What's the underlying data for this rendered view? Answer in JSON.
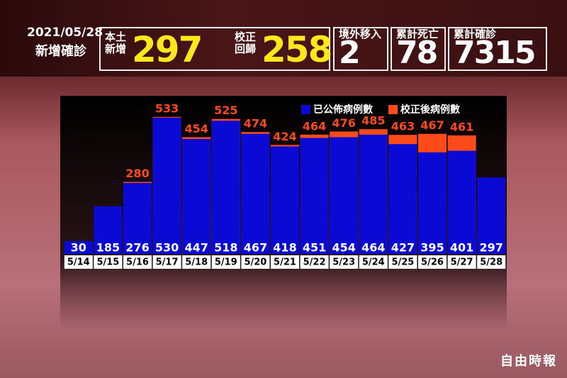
{
  "header": {
    "date": "2021/05/28",
    "title": "新增確診",
    "stats": [
      {
        "label": [
          "本土",
          "新增"
        ],
        "value": 297
      },
      {
        "label": [
          "校正",
          "回歸"
        ],
        "value": 258
      },
      {
        "label": [
          "境外移入"
        ],
        "value": 2
      },
      {
        "label": [
          "累計死亡"
        ],
        "value": 78
      },
      {
        "label": [
          "累計確診"
        ],
        "value": 7315
      }
    ]
  },
  "watermark": "自由時報",
  "chart_data": {
    "type": "bar",
    "categories": [
      "5/14",
      "5/15",
      "5/16",
      "5/17",
      "5/18",
      "5/19",
      "5/20",
      "5/21",
      "5/22",
      "5/23",
      "5/24",
      "5/25",
      "5/26",
      "5/27",
      "5/28"
    ],
    "series": [
      {
        "name": "校正後病例數",
        "color": "#ff4a1a",
        "values": [
          null,
          null,
          280,
          533,
          454,
          525,
          474,
          424,
          464,
          476,
          485,
          463,
          467,
          461,
          null
        ]
      },
      {
        "name": "已公佈病例數",
        "color": "#0a0ad4",
        "values": [
          30,
          185,
          276,
          530,
          447,
          518,
          467,
          418,
          451,
          454,
          464,
          427,
          395,
          401,
          297
        ]
      }
    ],
    "ylim": [
      0,
      560
    ]
  }
}
